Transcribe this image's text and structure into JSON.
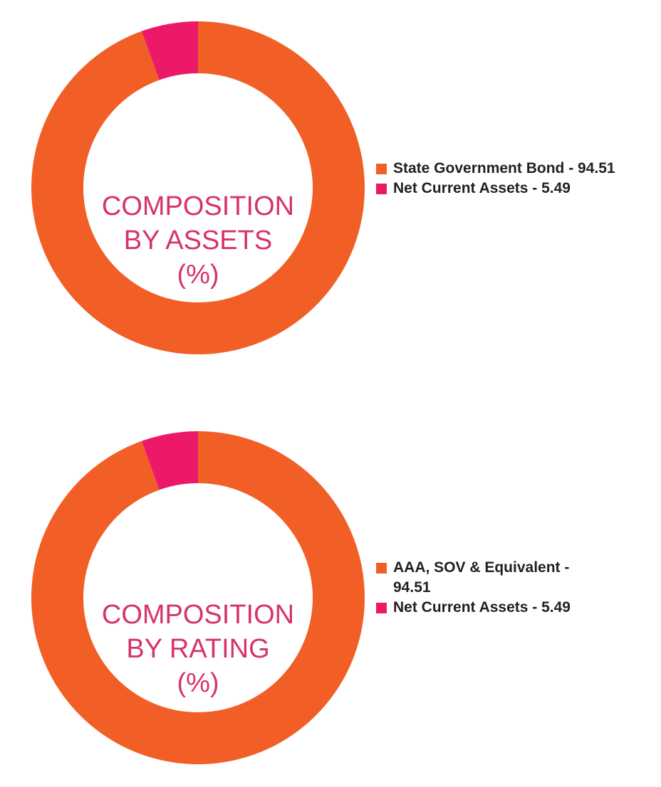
{
  "chart_data": [
    {
      "type": "pie",
      "donut": true,
      "title": "COMPOSITION BY ASSETS (%)",
      "title_lines": [
        "COMPOSITION",
        "BY ASSETS",
        "(%)"
      ],
      "categories": [
        "State Government Bond",
        "Net Current Assets"
      ],
      "values": [
        94.51,
        5.49
      ],
      "colors": [
        "#f15f27",
        "#ec1968"
      ],
      "legend_labels": [
        "State Government Bond - 94.51",
        "Net Current Assets - 5.49"
      ],
      "legend_position": "right"
    },
    {
      "type": "pie",
      "donut": true,
      "title": "COMPOSITION BY RATING (%)",
      "title_lines": [
        "COMPOSITION",
        "BY RATING",
        "(%)"
      ],
      "categories": [
        "AAA, SOV & Equivalent",
        "Net Current Assets"
      ],
      "values": [
        94.51,
        5.49
      ],
      "colors": [
        "#f15f27",
        "#ec1968"
      ],
      "legend_labels": [
        "AAA, SOV & Equivalent - 94.51",
        "Net Current Assets - 5.49"
      ],
      "legend_position": "right"
    }
  ],
  "colors": {
    "title_color": "#d6336c",
    "legend_text": "#231f20"
  }
}
